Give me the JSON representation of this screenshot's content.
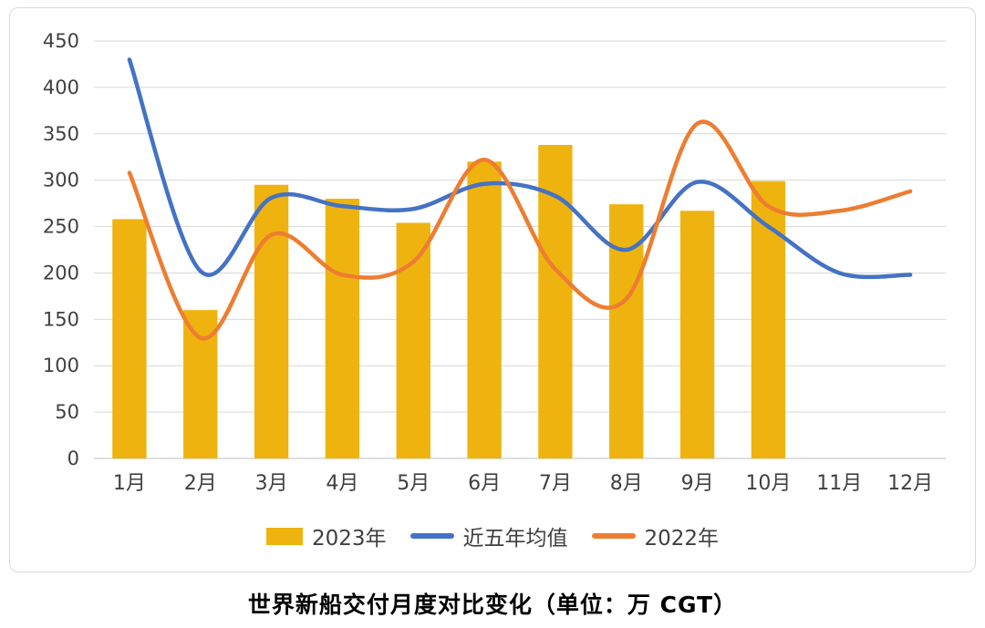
{
  "chart_data": {
    "type": "combo",
    "title": "世界新船交付月度对比变化（单位：万 CGT）",
    "categories": [
      "1月",
      "2月",
      "3月",
      "4月",
      "5月",
      "6月",
      "7月",
      "8月",
      "9月",
      "10月",
      "11月",
      "12月"
    ],
    "y_axis": {
      "min": 0,
      "max": 450,
      "step": 50
    },
    "grid": true,
    "legend_position": "bottom",
    "colors": {
      "bar_gold": "#EFB310",
      "line_blue": "#4472C4",
      "line_orange": "#ED7D31",
      "gridline": "#D9D9D9",
      "axis_text": "#404040"
    },
    "series": [
      {
        "name": "2023年",
        "type": "bar",
        "color": "#EFB310",
        "values": [
          258,
          160,
          295,
          280,
          254,
          320,
          338,
          274,
          267,
          299,
          null,
          null
        ]
      },
      {
        "name": "近五年均值",
        "type": "line",
        "color": "#4472C4",
        "values": [
          430,
          202,
          281,
          272,
          269,
          296,
          283,
          225,
          298,
          250,
          200,
          198
        ]
      },
      {
        "name": "2022年",
        "type": "line",
        "color": "#ED7D31",
        "values": [
          308,
          130,
          241,
          198,
          212,
          322,
          204,
          172,
          361,
          272,
          267,
          288
        ]
      }
    ]
  }
}
